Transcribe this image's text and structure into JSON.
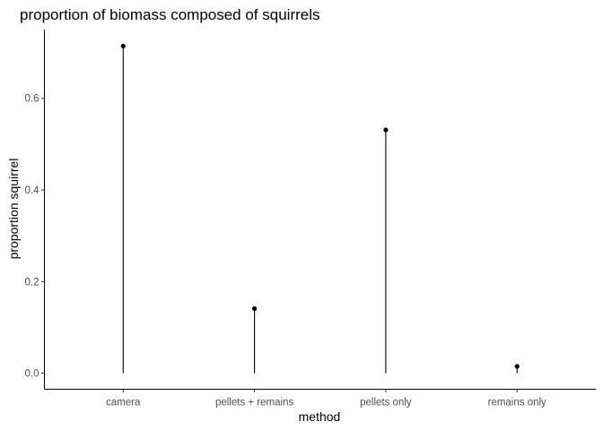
{
  "chart_data": {
    "type": "lollipop",
    "title": "proportion of biomass composed of squirrels",
    "xlabel": "method",
    "ylabel": "proportion squirrel",
    "categories": [
      "camera",
      "pellets + remains",
      "pellets only",
      "remains only"
    ],
    "values": [
      0.714,
      0.141,
      0.531,
      0.015
    ],
    "ylim": [
      -0.035,
      0.75
    ],
    "yticks": [
      0.0,
      0.2,
      0.4,
      0.6
    ],
    "ytick_labels": [
      "0.0",
      "0.2",
      "0.4",
      "0.6"
    ],
    "grid": false,
    "legend": "none",
    "colors": {
      "marks": "#000000",
      "axis": "#000000",
      "tick_text": "#4d4d4d"
    }
  }
}
